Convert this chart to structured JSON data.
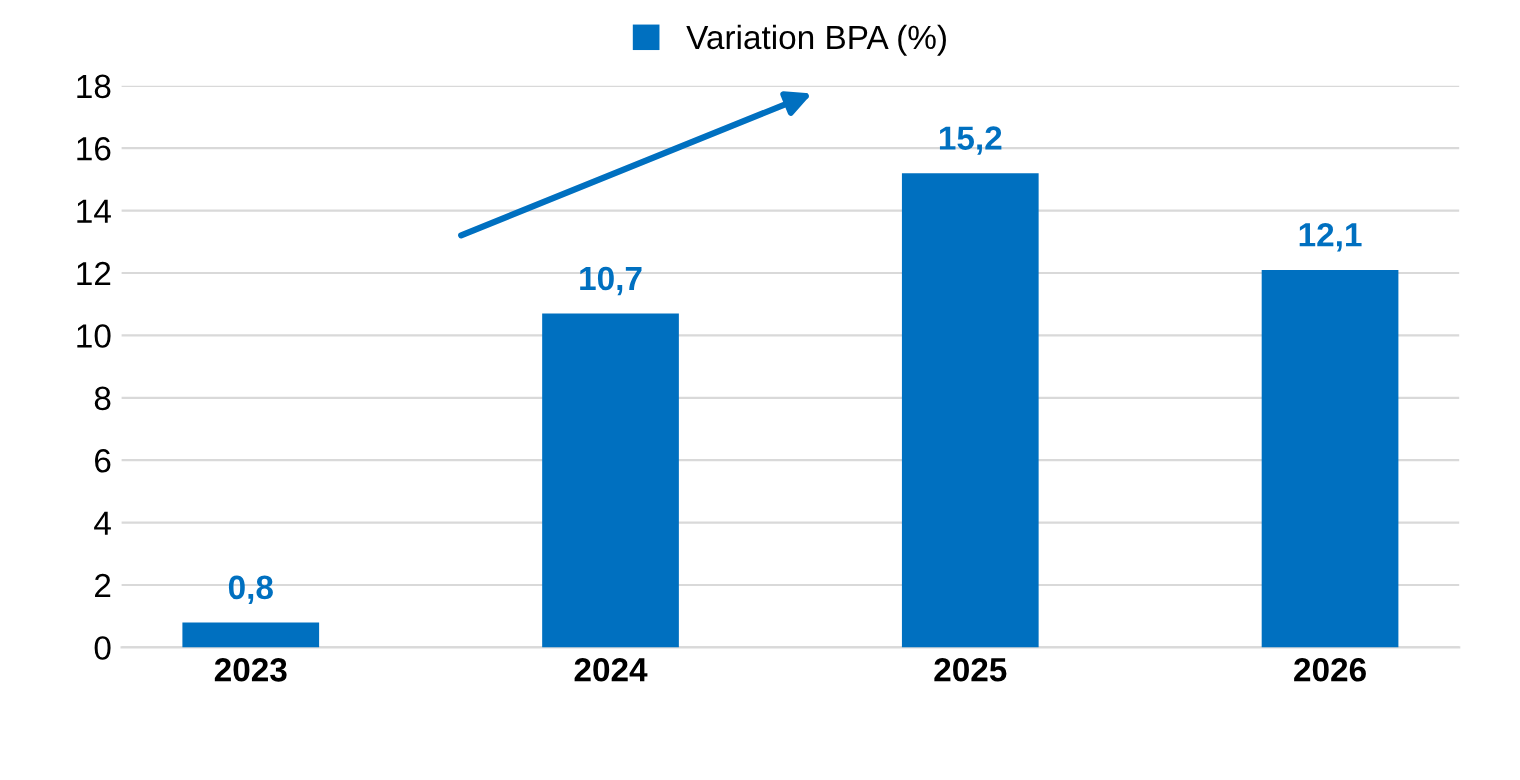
{
  "chart_data": {
    "type": "bar",
    "categories": [
      "2023",
      "2024",
      "2025",
      "2026"
    ],
    "series": [
      {
        "name": "Variation BPA (%)",
        "color": "#0070c0",
        "values": [
          0.8,
          10.7,
          15.2,
          12.1
        ]
      }
    ],
    "value_labels": [
      "0,8",
      "10,7",
      "15,2",
      "12,1"
    ],
    "ylim": [
      0,
      18
    ],
    "yticks": [
      0,
      2,
      4,
      6,
      8,
      10,
      12,
      14,
      16,
      18
    ],
    "grid": "y",
    "legend": "top"
  }
}
